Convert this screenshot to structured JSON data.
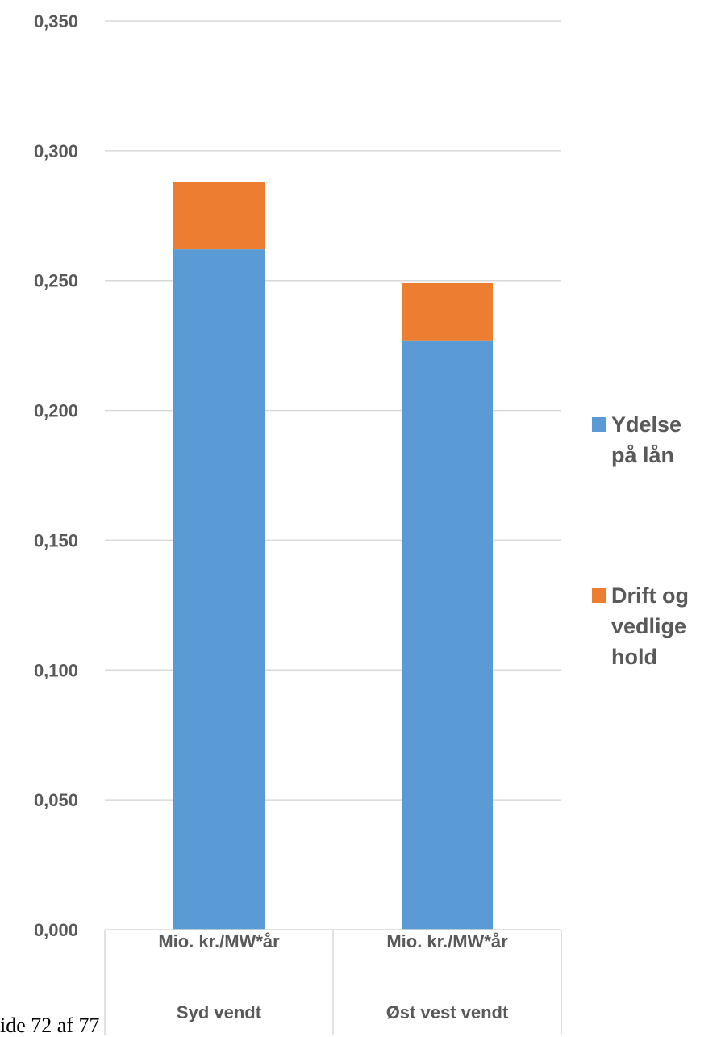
{
  "chart_data": {
    "type": "bar",
    "stacked": true,
    "categories": [
      [
        "Mio. kr./MW*år",
        "Syd vendt"
      ],
      [
        "Mio. kr./MW*år",
        "Øst vest vendt"
      ]
    ],
    "series": [
      {
        "name": "Ydelse på lån",
        "legend_lines": [
          "Ydelse",
          "på lån"
        ],
        "color": "#5b9bd5",
        "values": [
          0.262,
          0.227
        ]
      },
      {
        "name": "Drift og vedlige hold",
        "legend_lines": [
          "Drift og",
          "vedlige",
          "hold"
        ],
        "color": "#ed7d31",
        "values": [
          0.026,
          0.022
        ]
      }
    ],
    "ylim": [
      0,
      0.35
    ],
    "yticks": [
      "0,000",
      "0,050",
      "0,100",
      "0,150",
      "0,200",
      "0,250",
      "0,300",
      "0,350"
    ],
    "grid": true,
    "legend_position": "right",
    "gridline_color": "#d9d9d9"
  },
  "footer_text": "ide 72 af 77"
}
